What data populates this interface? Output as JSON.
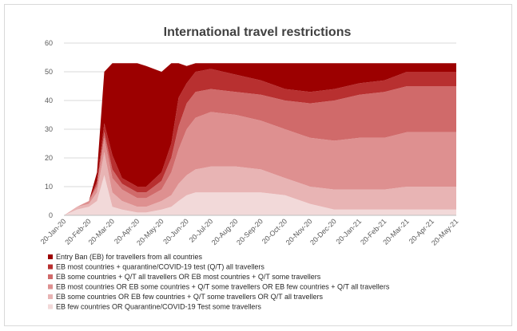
{
  "chart_data": {
    "type": "area",
    "stacked": true,
    "title": "International travel restrictions",
    "xlabel": "",
    "ylabel": "",
    "ylim": [
      0,
      60
    ],
    "yticks": [
      0,
      10,
      20,
      30,
      40,
      50,
      60
    ],
    "grid": "horizontal",
    "legend_position": "bottom",
    "x_tick_labels": [
      "20-Jan-20",
      "20-Feb-20",
      "20-Mar-20",
      "20-Apr-20",
      "20-May-20",
      "20-Jun-20",
      "20-Jul-20",
      "20-Aug-20",
      "20-Sep-20",
      "20-Oct-20",
      "20-Nov-20",
      "20-Dec-20",
      "20-Jan-21",
      "20-Feb-21",
      "20-Mar-21",
      "20-Apr-21",
      "20-May-21"
    ],
    "x": [
      "2020-01-20",
      "2020-02-05",
      "2020-02-20",
      "2020-03-01",
      "2020-03-10",
      "2020-03-20",
      "2020-04-01",
      "2020-04-20",
      "2020-05-01",
      "2020-05-20",
      "2020-06-01",
      "2020-06-10",
      "2020-06-20",
      "2020-07-01",
      "2020-07-20",
      "2020-08-20",
      "2020-09-20",
      "2020-10-20",
      "2020-11-20",
      "2020-12-20",
      "2021-01-20",
      "2021-02-20",
      "2021-03-20",
      "2021-04-20",
      "2021-05-20"
    ],
    "series": [
      {
        "name": "EB few countries OR Quarantine/COVID-19 Test some travellers",
        "color": "#f2d9d9",
        "values": [
          0,
          2,
          3,
          5,
          14,
          3,
          2,
          1,
          1,
          2,
          3,
          5,
          7,
          8,
          8,
          8,
          8,
          7,
          4,
          2,
          2,
          2,
          2,
          2,
          2
        ]
      },
      {
        "name": "EB some countries OR EB few countries + Q/T some travellers OR Q/T all travellers",
        "color": "#e8b4b4",
        "values": [
          0,
          1,
          1,
          3,
          8,
          5,
          3,
          2,
          2,
          3,
          4,
          6,
          7,
          8,
          9,
          9,
          8,
          6,
          6,
          7,
          7,
          7,
          8,
          8,
          8
        ]
      },
      {
        "name": "EB most countries OR EB some countries + Q/T some travellers OR EB few countries + Q/T all travellers",
        "color": "#de9090",
        "values": [
          0,
          0,
          1,
          2,
          5,
          5,
          4,
          3,
          3,
          4,
          8,
          12,
          16,
          18,
          19,
          18,
          17,
          17,
          17,
          17,
          18,
          18,
          19,
          19,
          19
        ]
      },
      {
        "name": "EB some countries + Q/T all travellers OR EB most countries + Q/T some travellers",
        "color": "#d06a6a",
        "values": [
          0,
          0,
          0,
          1,
          2,
          3,
          2,
          2,
          2,
          3,
          5,
          8,
          9,
          9,
          8,
          8,
          9,
          10,
          12,
          14,
          15,
          16,
          16,
          16,
          16
        ]
      },
      {
        "name": "EB most countries + quarantine/COVID-19 test (Q/T) all travellers",
        "color": "#b83030",
        "values": [
          0,
          0,
          0,
          1,
          3,
          5,
          2,
          2,
          2,
          3,
          5,
          10,
          7,
          7,
          7,
          6,
          5,
          4,
          4,
          4,
          4,
          4,
          5,
          5,
          5
        ]
      },
      {
        "name": "Entry Ban (EB) for travellers from all countries",
        "color": "#9c0000",
        "values": [
          0,
          0,
          0,
          3,
          18,
          32,
          40,
          43,
          42,
          35,
          28,
          12,
          6,
          3,
          2,
          4,
          6,
          9,
          10,
          9,
          7,
          6,
          3,
          3,
          3
        ]
      }
    ]
  }
}
